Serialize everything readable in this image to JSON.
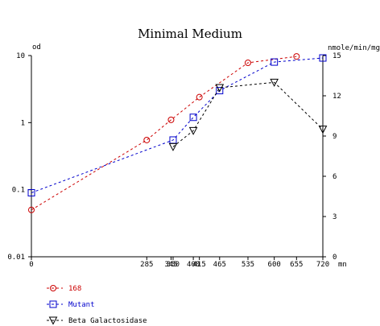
{
  "chart_data": {
    "type": "line",
    "title": "Minimal Medium",
    "x_unit": "mn",
    "y_left_label": "od",
    "y_right_label": "nmole/min/mg",
    "y_left_scale": "log",
    "y_left_range": [
      0.01,
      10
    ],
    "y_left_ticks": [
      "10",
      "1",
      "0.1",
      "0.01"
    ],
    "y_right_range": [
      0,
      15
    ],
    "y_right_ticks": [
      "15",
      "12",
      "9",
      "6",
      "3",
      "0"
    ],
    "x_range": [
      0,
      720
    ],
    "x_ticks": [
      "0",
      "285",
      "345",
      "350",
      "400",
      "415",
      "465",
      "535",
      "600",
      "655",
      "720"
    ],
    "grid": false,
    "legend_position": "bottom-left",
    "series": [
      {
        "name": "168",
        "axis": "left",
        "color": "#cc0000",
        "marker": "circle",
        "points": [
          [
            0,
            0.05
          ],
          [
            285,
            0.55
          ],
          [
            345,
            1.1
          ],
          [
            415,
            2.4
          ],
          [
            535,
            7.8
          ],
          [
            655,
            9.7
          ]
        ]
      },
      {
        "name": "Mutant",
        "axis": "left",
        "color": "#0000cc",
        "marker": "square",
        "points": [
          [
            0,
            0.09
          ],
          [
            350,
            0.55
          ],
          [
            400,
            1.2
          ],
          [
            465,
            3.0
          ],
          [
            600,
            8.0
          ],
          [
            720,
            9.2
          ]
        ]
      },
      {
        "name": "Beta Galactosidase",
        "axis": "right",
        "color": "#000000",
        "marker": "triangle-down",
        "points": [
          [
            350,
            8.2
          ],
          [
            400,
            9.4
          ],
          [
            465,
            12.6
          ],
          [
            600,
            13.0
          ],
          [
            720,
            9.5
          ]
        ]
      }
    ]
  }
}
